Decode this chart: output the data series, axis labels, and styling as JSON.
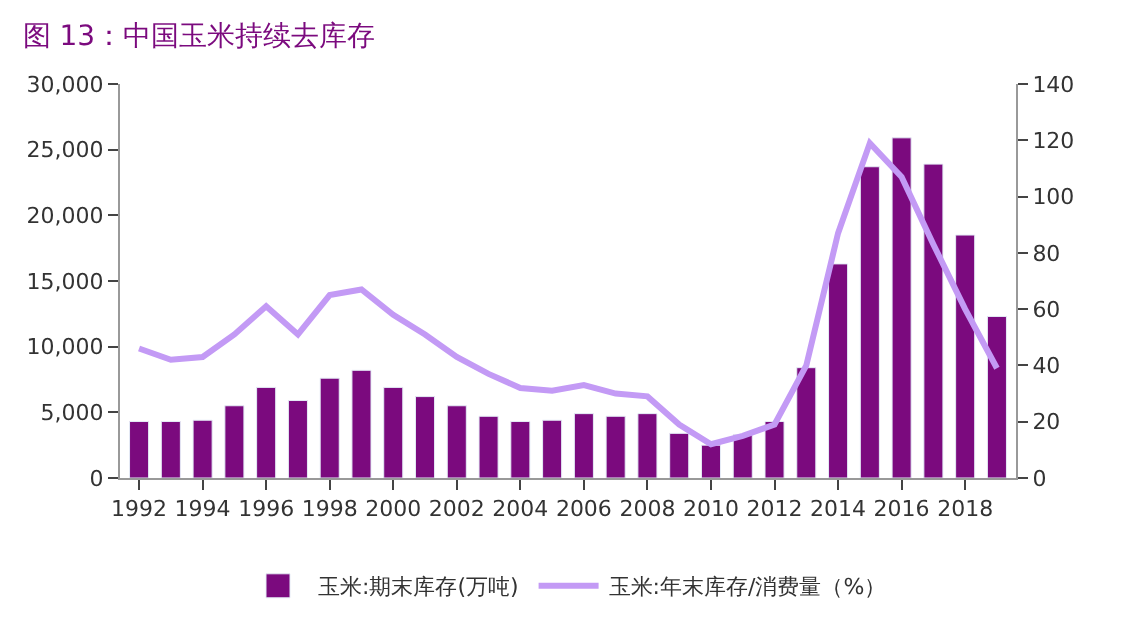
{
  "chart_data": {
    "type": "bar",
    "title": "图 13：中国玉米持续去库存",
    "x": [
      1992,
      1993,
      1994,
      1995,
      1996,
      1997,
      1998,
      1999,
      2000,
      2001,
      2002,
      2003,
      2004,
      2005,
      2006,
      2007,
      2008,
      2009,
      2010,
      2011,
      2012,
      2013,
      2014,
      2015,
      2016,
      2017,
      2018,
      2019
    ],
    "series": [
      {
        "name": "玉米:期末库存(万吨)",
        "color": "#7b0a7e",
        "values": [
          4300,
          4300,
          4400,
          5500,
          6900,
          5900,
          7600,
          8200,
          6900,
          6200,
          5500,
          4700,
          4300,
          4400,
          4900,
          4700,
          4900,
          3400,
          2500,
          3300,
          4300,
          8400,
          16300,
          23700,
          25900,
          23900,
          18500,
          12300
        ]
      },
      {
        "name": "玉米:年末库存/消费量（%）",
        "type": "line",
        "axis": "y2",
        "color": "#c39af5",
        "values": [
          46,
          42,
          43,
          51,
          61,
          51,
          65,
          67,
          58,
          51,
          43,
          37,
          32,
          31,
          33,
          30,
          29,
          19,
          12,
          15,
          19,
          40,
          87,
          119,
          107,
          83,
          60,
          39
        ]
      }
    ],
    "xlim": [
      1991.4,
      2019.6
    ],
    "xticks": [
      1992,
      1994,
      1996,
      1998,
      2000,
      2002,
      2004,
      2006,
      2008,
      2010,
      2012,
      2014,
      2016,
      2018
    ],
    "ylim": [
      0,
      30000
    ],
    "yticks": [
      {
        "value": 0,
        "label": "0"
      },
      {
        "value": 5000,
        "label": "5,000"
      },
      {
        "value": 10000,
        "label": "10,000"
      },
      {
        "value": 15000,
        "label": "15,000"
      },
      {
        "value": 20000,
        "label": "20,000"
      },
      {
        "value": 25000,
        "label": "25,000"
      },
      {
        "value": 30000,
        "label": "30,000"
      }
    ],
    "y2lim": [
      0,
      140
    ],
    "y2ticks": [
      0,
      20,
      40,
      60,
      80,
      100,
      120,
      140
    ],
    "legend": "bottom"
  }
}
